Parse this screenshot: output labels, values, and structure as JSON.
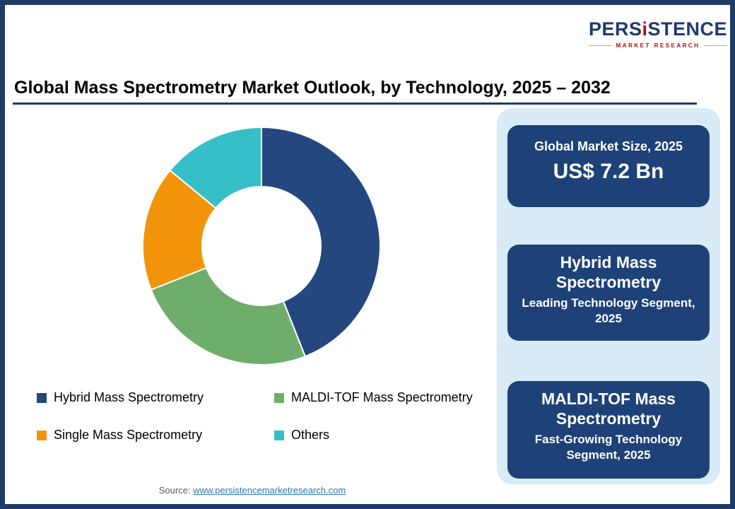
{
  "logo": {
    "brand_part1": "PERS",
    "brand_accent": "i",
    "brand_part2": "STENCE",
    "tagline": "MARKET RESEARCH",
    "brand_color": "#1F3A6E",
    "accent_color": "#C00000"
  },
  "header": {
    "title": "Global Mass Spectrometry Market Outlook, by Technology, 2025 – 2032",
    "underline_color": "#1E3A66"
  },
  "chart_data": {
    "type": "pie",
    "subtype": "donut",
    "title": "Global Mass Spectrometry Market Outlook, by Technology, 2025 – 2032",
    "categories": [
      "Hybrid Mass Spectrometry",
      "MALDI-TOF Mass Spectrometry",
      "Single Mass Spectrometry",
      "Others"
    ],
    "values": [
      44,
      25,
      17,
      14
    ],
    "values_note": "percent share estimated from arc angles; no data labels shown in image",
    "colors": [
      "#24477F",
      "#6FAD6B",
      "#F2940A",
      "#36BFC9"
    ],
    "start_angle_deg": 0,
    "direction": "clockwise",
    "donut_hole_ratio": 0.5,
    "legend_position": "bottom-left, two columns"
  },
  "sidebar": {
    "panel_color": "#D8EBF6",
    "card_color": "#1E4278",
    "cards": [
      {
        "title": "Global Market Size, 2025",
        "value": "US$ 7.2 Bn"
      },
      {
        "title": "Hybrid Mass Spectrometry",
        "subtitle": "Leading Technology Segment, 2025"
      },
      {
        "title": "MALDI-TOF Mass Spectrometry",
        "subtitle": "Fast-Growing Technology Segment, 2025"
      }
    ]
  },
  "footer": {
    "source_label": "Source: ",
    "source_link": "www.persistencemarketresearch.com"
  }
}
